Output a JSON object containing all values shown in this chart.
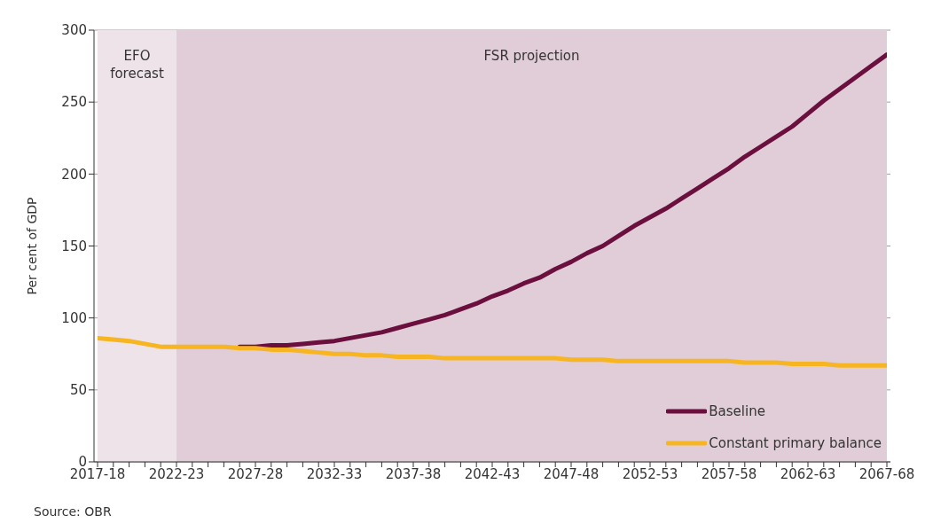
{
  "chart_data": {
    "type": "line",
    "ylabel": "Per cent of GDP",
    "categories": [
      "2017-18",
      null,
      null,
      null,
      null,
      "2022-23",
      null,
      null,
      null,
      null,
      "2027-28",
      null,
      null,
      null,
      null,
      "2032-33",
      null,
      null,
      null,
      null,
      "2037-38",
      null,
      null,
      null,
      null,
      "2042-43",
      null,
      null,
      null,
      null,
      "2047-48",
      null,
      null,
      null,
      null,
      "2052-53",
      null,
      null,
      null,
      null,
      "2057-58",
      null,
      null,
      null,
      null,
      "2062-63",
      null,
      null,
      null,
      null,
      "2067-68"
    ],
    "series": [
      {
        "name": "Baseline",
        "color": "#6b0f3e",
        "values": [
          null,
          null,
          null,
          null,
          null,
          null,
          null,
          null,
          null,
          80,
          80,
          81,
          81,
          82,
          83,
          84,
          86,
          88,
          90,
          93,
          96,
          99,
          102,
          106,
          110,
          115,
          119,
          124,
          128,
          134,
          139,
          145,
          150,
          157,
          164,
          170,
          176,
          183,
          190,
          197,
          204,
          212,
          219,
          226,
          233,
          242,
          251,
          259,
          267,
          275,
          283
        ]
      },
      {
        "name": "Constant primary balance",
        "color": "#f7b522",
        "values": [
          86,
          85,
          84,
          82,
          80,
          80,
          80,
          80,
          80,
          79,
          79,
          78,
          78,
          77,
          76,
          75,
          75,
          74,
          74,
          73,
          73,
          73,
          72,
          72,
          72,
          72,
          72,
          72,
          72,
          72,
          71,
          71,
          71,
          70,
          70,
          70,
          70,
          70,
          70,
          70,
          70,
          69,
          69,
          69,
          68,
          68,
          68,
          67,
          67,
          67,
          67
        ]
      }
    ],
    "ylim": [
      0,
      300
    ],
    "yticks": [
      0,
      50,
      100,
      150,
      200,
      250,
      300
    ],
    "grid": "y",
    "legend": "bottom right",
    "line_style": "solid",
    "marker": "none",
    "bands": [
      {
        "axis": "x",
        "from": "2017-18",
        "to": "2022-23",
        "label": "EFO forecast",
        "color": "#ede3e9"
      },
      {
        "axis": "x",
        "from": "2022-23",
        "to": "2067-68",
        "label": "FSR projection",
        "color": "#e0cdd7"
      }
    ],
    "annotations": [
      "Source: OBR"
    ]
  }
}
